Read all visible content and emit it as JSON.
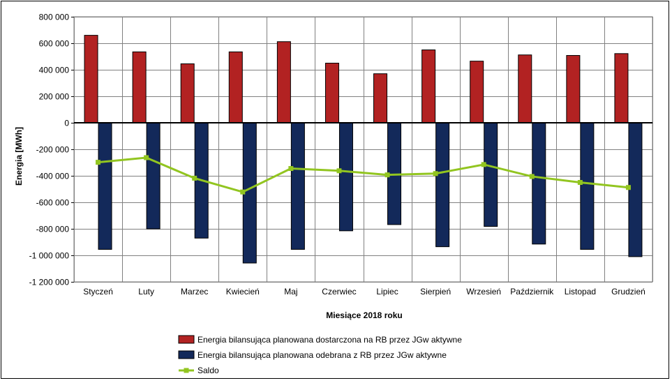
{
  "chart_data": {
    "type": "bar",
    "xlabel": "Miesiące 2018  roku",
    "ylabel": "Energia  [MWh]",
    "ylim": [
      -1200000,
      800000
    ],
    "yticks": [
      800000,
      600000,
      400000,
      200000,
      0,
      -200000,
      -400000,
      -600000,
      -800000,
      -1000000,
      -1200000
    ],
    "ytick_labels": [
      "800 000",
      "600 000",
      "400 000",
      "200 000",
      "0",
      "-200 000",
      "-400 000",
      "-600 000",
      "-800 000",
      "-1 000 000",
      "-1 200 000"
    ],
    "categories": [
      "Styczeń",
      "Luty",
      "Marzec",
      "Kwiecień",
      "Maj",
      "Czerwiec",
      "Lipiec",
      "Sierpień",
      "Wrzesień",
      "Październik",
      "Listopad",
      "Grudzień"
    ],
    "grid": true,
    "legend_position": "bottom",
    "series": [
      {
        "name": "Energia bilansująca planowana dostarczona na RB przez JGw aktywne",
        "type": "bar",
        "color": "#b22222",
        "values": [
          660000,
          535000,
          445000,
          535000,
          612000,
          450000,
          370000,
          550000,
          465000,
          512000,
          508000,
          522000
        ]
      },
      {
        "name": "Energia bilansująca planowana odebrana z RB przez JGw aktywne",
        "type": "bar",
        "color": "#13295a",
        "values": [
          -955000,
          -800000,
          -870000,
          -1058000,
          -955000,
          -815000,
          -768000,
          -935000,
          -782000,
          -915000,
          -955000,
          -1010000
        ]
      },
      {
        "name": "Saldo",
        "type": "line",
        "color": "#92c520",
        "values": [
          -298000,
          -263000,
          -418000,
          -522000,
          -345000,
          -362000,
          -393000,
          -383000,
          -315000,
          -405000,
          -450000,
          -488000
        ]
      }
    ]
  }
}
